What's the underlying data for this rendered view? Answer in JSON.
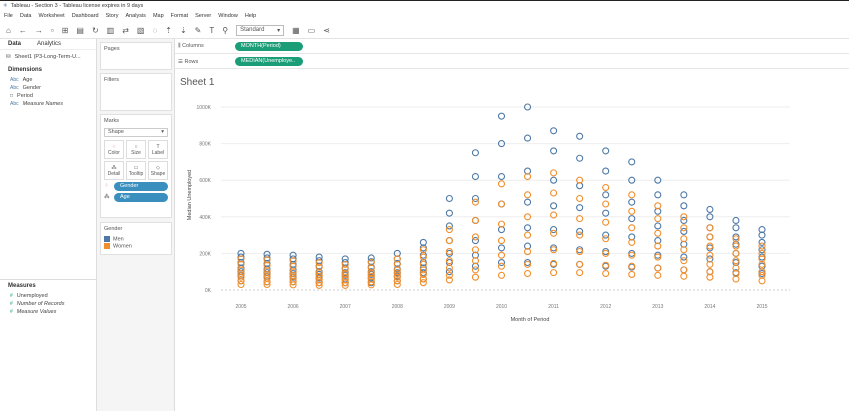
{
  "window": {
    "title": "Tableau - Section 3 - Tableau license expires in 9 days"
  },
  "menu": [
    "File",
    "Data",
    "Worksheet",
    "Dashboard",
    "Story",
    "Analysis",
    "Map",
    "Format",
    "Server",
    "Window",
    "Help"
  ],
  "toolbar": {
    "fit": "Standard"
  },
  "data_pane": {
    "tabs": [
      "Data",
      "Analytics"
    ],
    "source": "Sheet1 (P3-Long-Term-U...",
    "dimensions_label": "Dimensions",
    "dimensions": [
      {
        "icon": "Abc",
        "name": "Age"
      },
      {
        "icon": "Abc",
        "name": "Gender"
      },
      {
        "icon": "date",
        "name": "Period"
      },
      {
        "icon": "Abc",
        "name": "Measure Names"
      }
    ],
    "measures_label": "Measures",
    "measures": [
      "Unemployed",
      "Number of Records",
      "Measure Values"
    ]
  },
  "cards": {
    "pages": "Pages",
    "filters": "Filters",
    "marks": "Marks",
    "mark_type": "Shape",
    "mark_buttons": [
      "Color",
      "Size",
      "Label",
      "Detail",
      "Tooltip",
      "Shape"
    ],
    "pills": [
      "Gender",
      "Age"
    ],
    "legend_title": "Gender",
    "legend": [
      {
        "name": "Men",
        "color": "#4e79a7"
      },
      {
        "name": "Women",
        "color": "#f28e2b"
      }
    ]
  },
  "shelves": {
    "columns_label": "Columns",
    "columns_pill": "MONTH(Period)",
    "rows_label": "Rows",
    "rows_pill": "MEDIAN(Unemploye.."
  },
  "sheet_title": "Sheet 1",
  "chart_data": {
    "type": "scatter",
    "xlabel": "Month of Period",
    "ylabel": "Median Unemployed",
    "xlim": [
      2005,
      2015
    ],
    "ylim": [
      0,
      1000
    ],
    "y_unit": "K",
    "x_ticks": [
      "2005",
      "2006",
      "2007",
      "2008",
      "2009",
      "2010",
      "2011",
      "2012",
      "2013",
      "2014",
      "2015"
    ],
    "y_ticks": [
      "0K",
      "200K",
      "400K",
      "600K",
      "800K",
      "1000K"
    ],
    "x": [
      2005,
      2005.5,
      2006,
      2006.5,
      2007,
      2007.5,
      2008,
      2008.5,
      2009,
      2009.5,
      2010,
      2010.5,
      2011,
      2011.5,
      2012,
      2012.5,
      2013,
      2013.5,
      2014,
      2014.5,
      2015
    ],
    "marker": "open-circle",
    "grid": true,
    "series": [
      {
        "name": "Men",
        "color": "#4e79a7",
        "traces": [
          [
            200,
            195,
            190,
            180,
            170,
            175,
            200,
            260,
            500,
            750,
            950,
            1000,
            870,
            840,
            760,
            700,
            600,
            520,
            440,
            380,
            330
          ],
          [
            180,
            175,
            170,
            160,
            150,
            155,
            170,
            230,
            420,
            620,
            800,
            830,
            760,
            720,
            650,
            600,
            520,
            460,
            400,
            340,
            300
          ],
          [
            150,
            145,
            140,
            130,
            120,
            125,
            145,
            190,
            350,
            500,
            620,
            650,
            600,
            570,
            520,
            480,
            430,
            380,
            340,
            290,
            260
          ],
          [
            120,
            115,
            110,
            100,
            95,
            100,
            115,
            150,
            270,
            380,
            470,
            480,
            460,
            450,
            420,
            390,
            350,
            320,
            290,
            250,
            220
          ],
          [
            100,
            95,
            90,
            85,
            80,
            85,
            95,
            120,
            200,
            270,
            330,
            340,
            330,
            320,
            300,
            290,
            270,
            250,
            230,
            200,
            180
          ],
          [
            80,
            75,
            70,
            65,
            60,
            65,
            75,
            95,
            150,
            190,
            230,
            240,
            230,
            220,
            210,
            200,
            190,
            180,
            170,
            150,
            130
          ],
          [
            50,
            45,
            45,
            40,
            40,
            40,
            50,
            60,
            100,
            130,
            150,
            150,
            140,
            140,
            130,
            125,
            120,
            110,
            100,
            95,
            90
          ]
        ]
      },
      {
        "name": "Women",
        "color": "#f28e2b",
        "traces": [
          [
            170,
            165,
            160,
            150,
            140,
            150,
            170,
            220,
            330,
            480,
            580,
            620,
            640,
            600,
            560,
            520,
            460,
            400,
            340,
            280,
            240
          ],
          [
            140,
            135,
            130,
            125,
            115,
            120,
            140,
            180,
            270,
            380,
            470,
            520,
            530,
            500,
            470,
            430,
            390,
            340,
            290,
            240,
            200
          ],
          [
            110,
            105,
            100,
            95,
            90,
            95,
            110,
            140,
            210,
            290,
            360,
            400,
            410,
            390,
            370,
            340,
            310,
            280,
            240,
            200,
            170
          ],
          [
            90,
            85,
            80,
            75,
            70,
            75,
            90,
            110,
            160,
            220,
            270,
            300,
            310,
            300,
            280,
            260,
            240,
            220,
            190,
            160,
            140
          ],
          [
            70,
            65,
            60,
            55,
            55,
            60,
            70,
            85,
            120,
            160,
            190,
            210,
            220,
            210,
            200,
            190,
            180,
            160,
            140,
            120,
            100
          ],
          [
            50,
            45,
            45,
            40,
            40,
            45,
            50,
            60,
            80,
            110,
            130,
            140,
            145,
            140,
            135,
            130,
            120,
            110,
            100,
            90,
            80
          ],
          [
            30,
            30,
            28,
            25,
            25,
            28,
            30,
            40,
            55,
            70,
            80,
            90,
            95,
            95,
            90,
            85,
            80,
            75,
            70,
            60,
            50
          ]
        ]
      }
    ]
  }
}
